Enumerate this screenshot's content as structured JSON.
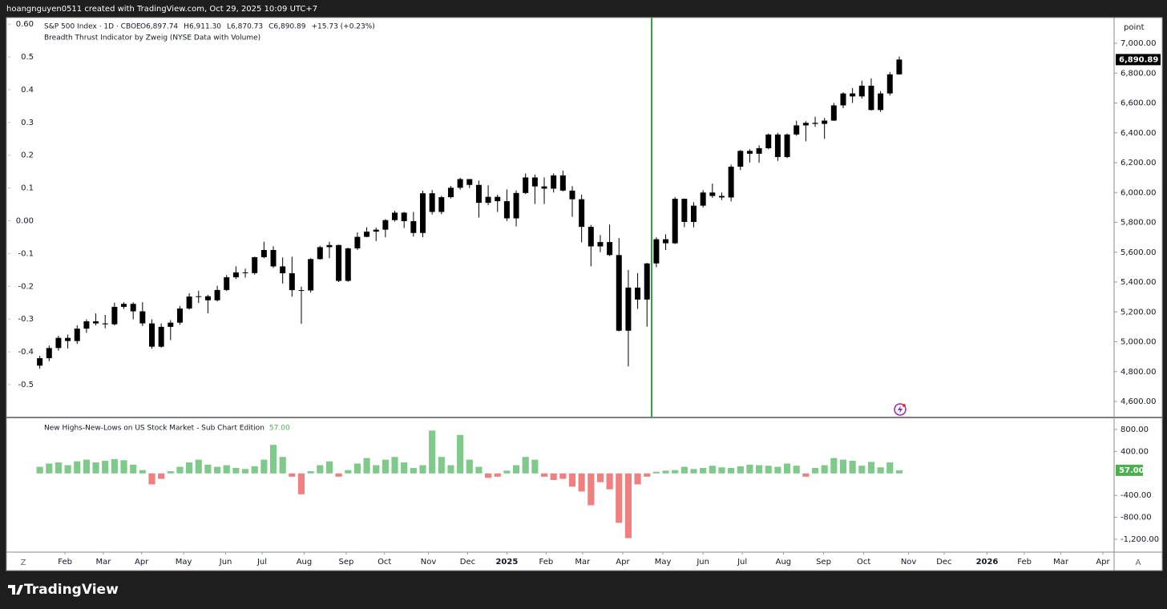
{
  "header": {
    "credit": "hoangnguyen0511 created with TradingView.com, Oct 29, 2025 10:09 UTC+7"
  },
  "footer": {
    "brand": "TradingView"
  },
  "controls": {
    "left": "Z",
    "right": "A"
  },
  "chart_data": [
    {
      "type": "candlestick",
      "legend": {
        "symbol": "S&P 500 Index · 1D · CBOE",
        "items": [
          "O6,897.74",
          "H6,911.30",
          "L6,870.73",
          "C6,890.89",
          "+15.73 (+0.23%)"
        ],
        "indicator": "Breadth Thrust Indicator by Zweig (NYSE Data with Volume)"
      },
      "y_unit": "point",
      "color": "#000000",
      "open": [
        4840,
        4890,
        4958,
        5026,
        5005,
        5088,
        5137,
        5123,
        5117,
        5234,
        5254,
        5204,
        5123,
        4967,
        5100,
        5128,
        5223,
        5303,
        5305,
        5278,
        5347,
        5432,
        5465,
        5460,
        5567,
        5615,
        5505,
        5459,
        5346,
        5344,
        5554,
        5634,
        5648,
        5408,
        5626,
        5703,
        5738,
        5751,
        5815,
        5865,
        5808,
        5729,
        5995,
        5870,
        5969,
        6032,
        6090,
        6051,
        5931,
        5971,
        5942,
        5827,
        5997,
        6101,
        6041,
        6026,
        6115,
        6013,
        5955,
        5770,
        5639,
        5668,
        5581,
        5074,
        5363,
        5283,
        5525,
        5687,
        5660,
        5958,
        5803,
        5912,
        6000,
        5977,
        5967,
        6173,
        6279,
        6260,
        6297,
        6389,
        6238,
        6389,
        6450,
        6467,
        6460,
        6482,
        6584,
        6664,
        6644,
        6716,
        6553,
        6664,
        6792
      ],
      "high": [
        4906,
        4975,
        5040,
        5048,
        5111,
        5150,
        5190,
        5180,
        5262,
        5265,
        5265,
        5265,
        5150,
        5123,
        5145,
        5240,
        5325,
        5342,
        5315,
        5375,
        5447,
        5505,
        5490,
        5570,
        5670,
        5640,
        5565,
        5570,
        5370,
        5560,
        5643,
        5670,
        5651,
        5630,
        5733,
        5767,
        5765,
        5822,
        5878,
        5870,
        5870,
        6012,
        6017,
        5978,
        6044,
        6099,
        6085,
        6080,
        6049,
        5985,
        6021,
        6014,
        6128,
        6120,
        6101,
        6128,
        6147,
        6043,
        5986,
        5783,
        5715,
        5786,
        5695,
        5481,
        5460,
        5528,
        5700,
        5720,
        5970,
        5960,
        5935,
        6016,
        6060,
        6000,
        6187,
        6285,
        6290,
        6316,
        6395,
        6400,
        6395,
        6481,
        6478,
        6508,
        6500,
        6600,
        6672,
        6700,
        6750,
        6765,
        6680,
        6807,
        6911
      ],
      "low": [
        4820,
        4870,
        4940,
        4955,
        4985,
        5060,
        5110,
        5090,
        5110,
        5220,
        5150,
        5105,
        4953,
        4960,
        5011,
        5114,
        5215,
        5260,
        5191,
        5270,
        5340,
        5420,
        5430,
        5450,
        5560,
        5495,
        5390,
        5302,
        5120,
        5330,
        5550,
        5560,
        5400,
        5402,
        5615,
        5700,
        5675,
        5700,
        5805,
        5762,
        5705,
        5700,
        5853,
        5855,
        5960,
        6020,
        6030,
        5832,
        5915,
        5870,
        5809,
        5773,
        5990,
        5923,
        5923,
        6000,
        6008,
        5837,
        5666,
        5505,
        5600,
        5574,
        5070,
        4835,
        5220,
        5101,
        5500,
        5615,
        5655,
        5768,
        5767,
        5900,
        5965,
        5950,
        5940,
        6150,
        6201,
        6200,
        6290,
        6212,
        6230,
        6380,
        6343,
        6440,
        6360,
        6480,
        6565,
        6600,
        6630,
        6550,
        6540,
        6650,
        6790
      ],
      "close": [
        4890,
        4958,
        5026,
        5005,
        5088,
        5137,
        5123,
        5117,
        5234,
        5254,
        5204,
        5123,
        4967,
        5100,
        5128,
        5223,
        5303,
        5305,
        5278,
        5347,
        5432,
        5465,
        5460,
        5567,
        5615,
        5505,
        5459,
        5346,
        5344,
        5554,
        5634,
        5648,
        5408,
        5626,
        5703,
        5738,
        5751,
        5815,
        5865,
        5808,
        5729,
        5995,
        5870,
        5969,
        6032,
        6090,
        6051,
        5931,
        5971,
        5942,
        5827,
        5997,
        6101,
        6041,
        6026,
        6115,
        6013,
        5955,
        5770,
        5639,
        5668,
        5581,
        5074,
        5363,
        5283,
        5525,
        5687,
        5660,
        5958,
        5803,
        5912,
        6000,
        5977,
        5967,
        6173,
        6279,
        6260,
        6297,
        6389,
        6238,
        6389,
        6450,
        6467,
        6460,
        6482,
        6584,
        6664,
        6644,
        6716,
        6553,
        6664,
        6792,
        6891
      ],
      "last_price": {
        "value": 6890.89,
        "label": "6,890.89"
      },
      "signal": {
        "x": 65.5,
        "color": "#2e9e3a"
      },
      "xlim": [
        -3.4,
        115.0
      ],
      "xticks": [
        {
          "value": 2.7,
          "label": "Feb"
        },
        {
          "value": 6.8,
          "label": "Mar"
        },
        {
          "value": 10.9,
          "label": "Apr"
        },
        {
          "value": 15.4,
          "label": "May"
        },
        {
          "value": 19.9,
          "label": "Jun"
        },
        {
          "value": 23.8,
          "label": "Jul"
        },
        {
          "value": 28.3,
          "label": "Aug"
        },
        {
          "value": 32.8,
          "label": "Sep"
        },
        {
          "value": 36.9,
          "label": "Oct"
        },
        {
          "value": 41.6,
          "label": "Nov"
        },
        {
          "value": 45.8,
          "label": "Dec"
        },
        {
          "value": 50.0,
          "label": "2025"
        },
        {
          "value": 54.2,
          "label": "Feb"
        },
        {
          "value": 58.1,
          "label": "Mar"
        },
        {
          "value": 62.4,
          "label": "Apr"
        },
        {
          "value": 66.7,
          "label": "May"
        },
        {
          "value": 71.0,
          "label": "Jun"
        },
        {
          "value": 75.2,
          "label": "Jul"
        },
        {
          "value": 79.6,
          "label": "Aug"
        },
        {
          "value": 83.9,
          "label": "Sep"
        },
        {
          "value": 88.2,
          "label": "Oct"
        },
        {
          "value": 93.0,
          "label": "Nov"
        },
        {
          "value": 96.8,
          "label": "Dec"
        },
        {
          "value": 101.4,
          "label": "2026"
        },
        {
          "value": 105.4,
          "label": "Feb"
        },
        {
          "value": 109.3,
          "label": "Mar"
        },
        {
          "value": 113.8,
          "label": "Apr"
        }
      ],
      "ylim": [
        4498,
        7172
      ],
      "yticks": [
        {
          "value": 4600,
          "label": "4,600.00"
        },
        {
          "value": 4800,
          "label": "4,800.00"
        },
        {
          "value": 5000,
          "label": "5,000.00"
        },
        {
          "value": 5200,
          "label": "5,200.00"
        },
        {
          "value": 5400,
          "label": "5,400.00"
        },
        {
          "value": 5600,
          "label": "5,600.00"
        },
        {
          "value": 5800,
          "label": "5,800.00"
        },
        {
          "value": 6000,
          "label": "6,000.00"
        },
        {
          "value": 6200,
          "label": "6,200.00"
        },
        {
          "value": 6400,
          "label": "6,400.00"
        },
        {
          "value": 6600,
          "label": "6,600.00"
        },
        {
          "value": 6800,
          "label": "6,800.00"
        },
        {
          "value": 7000,
          "label": "7,000.00"
        }
      ],
      "y2lim": [
        -0.598,
        0.62
      ],
      "y2ticks": [
        {
          "value": 0.6,
          "label": "0.60"
        },
        0.5,
        0.4,
        0.3,
        0.2,
        0.1,
        {
          "value": 0,
          "label": "0.00"
        },
        -0.1,
        -0.2,
        -0.3,
        -0.4,
        -0.5
      ]
    },
    {
      "type": "histogram",
      "title": "New Highs-New-Lows on US Stock Market - Sub Chart Edition",
      "colors": {
        "positive": "#7fc98a",
        "negative": "#f08080"
      },
      "values": [
        120,
        180,
        200,
        150,
        220,
        250,
        200,
        230,
        260,
        240,
        160,
        60,
        -200,
        -100,
        40,
        120,
        200,
        250,
        160,
        120,
        150,
        100,
        80,
        130,
        250,
        520,
        300,
        -60,
        -380,
        40,
        150,
        220,
        -60,
        60,
        180,
        280,
        150,
        250,
        300,
        200,
        100,
        150,
        780,
        300,
        150,
        700,
        250,
        120,
        -80,
        -60,
        50,
        150,
        300,
        250,
        -60,
        -120,
        -100,
        -240,
        -330,
        -580,
        -160,
        -290,
        -900,
        -1180,
        -200,
        -60,
        30,
        50,
        60,
        120,
        80,
        100,
        140,
        110,
        100,
        130,
        160,
        150,
        140,
        120,
        180,
        140,
        -60,
        100,
        150,
        280,
        250,
        230,
        140,
        210,
        110,
        200,
        57
      ],
      "last_value": {
        "value": 57,
        "label": "57.00"
      },
      "ylim": [
        -1419,
        1004
      ],
      "yticks": [
        {
          "value": 800,
          "label": "800.00"
        },
        {
          "value": 400,
          "label": "400.00"
        },
        {
          "value": -400,
          "label": "-400.00"
        },
        {
          "value": -800,
          "label": "-800.00"
        },
        {
          "value": -1200,
          "label": "-1,200.00"
        }
      ]
    }
  ]
}
